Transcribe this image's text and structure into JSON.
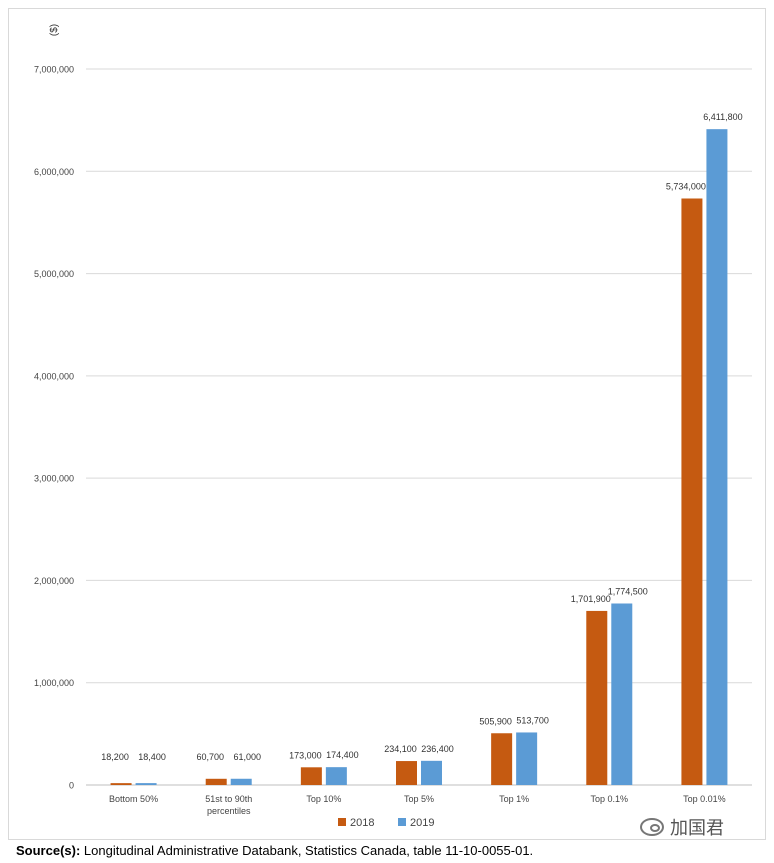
{
  "chart_data": {
    "type": "bar",
    "ylabel": "($)",
    "ylim": [
      0,
      7000000
    ],
    "yticks": [
      "0",
      "1,000,000",
      "2,000,000",
      "3,000,000",
      "4,000,000",
      "5,000,000",
      "6,000,000",
      "7,000,000"
    ],
    "categories": [
      "Bottom 50%",
      "51st to 90th percentiles",
      "Top 10%",
      "Top 5%",
      "Top 1%",
      "Top 0.1%",
      "Top 0.01%"
    ],
    "series": [
      {
        "name": "2018",
        "color": "#c55a11",
        "values": [
          18200,
          60700,
          173000,
          234100,
          505900,
          1701900,
          5734000
        ],
        "labels": [
          "18,200",
          "60,700",
          "173,000",
          "234,100",
          "505,900",
          "1,701,900",
          "5,734,000"
        ]
      },
      {
        "name": "2019",
        "color": "#5b9bd5",
        "values": [
          18400,
          61000,
          174400,
          236400,
          513700,
          1774500,
          6411800
        ],
        "labels": [
          "18,400",
          "61,000",
          "174,400",
          "236,400",
          "513,700",
          "1,774,500",
          "6,411,800"
        ]
      }
    ],
    "grid": true,
    "legend": "bottom"
  },
  "source": {
    "label": "Source(s):",
    "text": " Longitudinal Administrative Databank, Statistics Canada, table 11-10-0055-01."
  },
  "watermark": {
    "text": "加国君",
    "icon": "wechat-icon"
  }
}
